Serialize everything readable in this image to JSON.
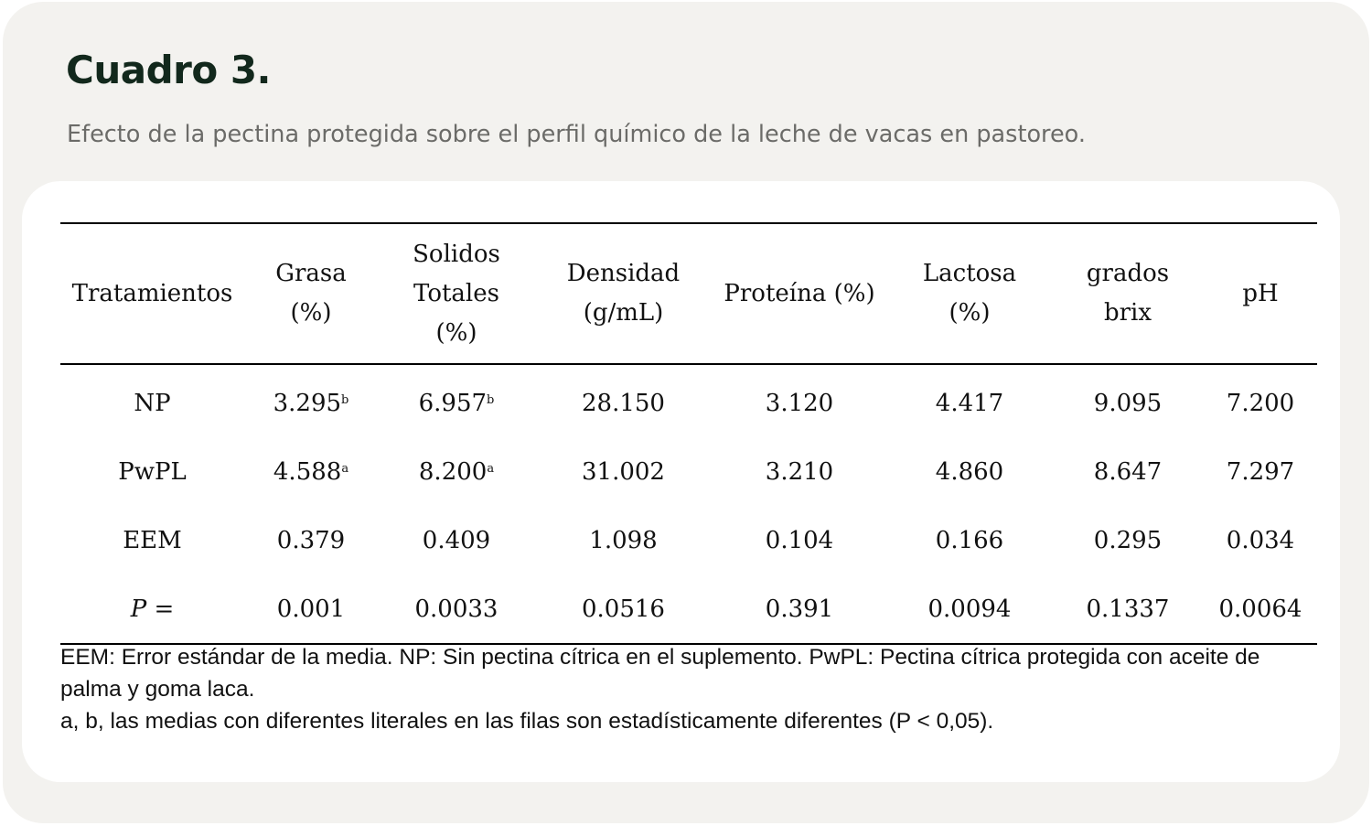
{
  "title": "Cuadro 3.",
  "subtitle": "Efecto de la pectina protegida sobre el perfil químico de la leche de vacas en pastoreo.",
  "table": {
    "headers": [
      [
        "Tratamientos"
      ],
      [
        "Grasa",
        "(%)"
      ],
      [
        "Solidos",
        "Totales",
        "(%)"
      ],
      [
        "Densidad",
        "(g/mL)"
      ],
      [
        "Proteína (%)"
      ],
      [
        "Lactosa",
        "(%)"
      ],
      [
        "grados",
        "brix"
      ],
      [
        "pH"
      ]
    ],
    "rows": [
      {
        "label": "NP",
        "cells": [
          {
            "v": "3.295",
            "s": "b"
          },
          {
            "v": "6.957",
            "s": "b"
          },
          {
            "v": "28.150"
          },
          {
            "v": "3.120"
          },
          {
            "v": "4.417"
          },
          {
            "v": "9.095"
          },
          {
            "v": "7.200"
          }
        ]
      },
      {
        "label": "PwPL",
        "cells": [
          {
            "v": "4.588",
            "s": "a"
          },
          {
            "v": "8.200",
            "s": "a"
          },
          {
            "v": "31.002"
          },
          {
            "v": "3.210"
          },
          {
            "v": "4.860"
          },
          {
            "v": "8.647"
          },
          {
            "v": "7.297"
          }
        ]
      },
      {
        "label": "EEM",
        "cells": [
          {
            "v": "0.379"
          },
          {
            "v": "0.409"
          },
          {
            "v": "1.098"
          },
          {
            "v": "0.104"
          },
          {
            "v": "0.166"
          },
          {
            "v": "0.295"
          },
          {
            "v": "0.034"
          }
        ]
      },
      {
        "label": "P =",
        "italic": true,
        "cells": [
          {
            "v": "0.001"
          },
          {
            "v": "0.0033"
          },
          {
            "v": "0.0516"
          },
          {
            "v": "0.391"
          },
          {
            "v": "0.0094"
          },
          {
            "v": "0.1337"
          },
          {
            "v": "0.0064"
          }
        ]
      }
    ]
  },
  "notes": [
    "EEM: Error estándar de la media. NP: Sin pectina cítrica en el suplemento. PwPL: Pectina cítrica protegida con aceite de palma y goma laca.",
    "a, b, las medias con diferentes literales en las filas son estadísticamente diferentes (P < 0,05)."
  ]
}
